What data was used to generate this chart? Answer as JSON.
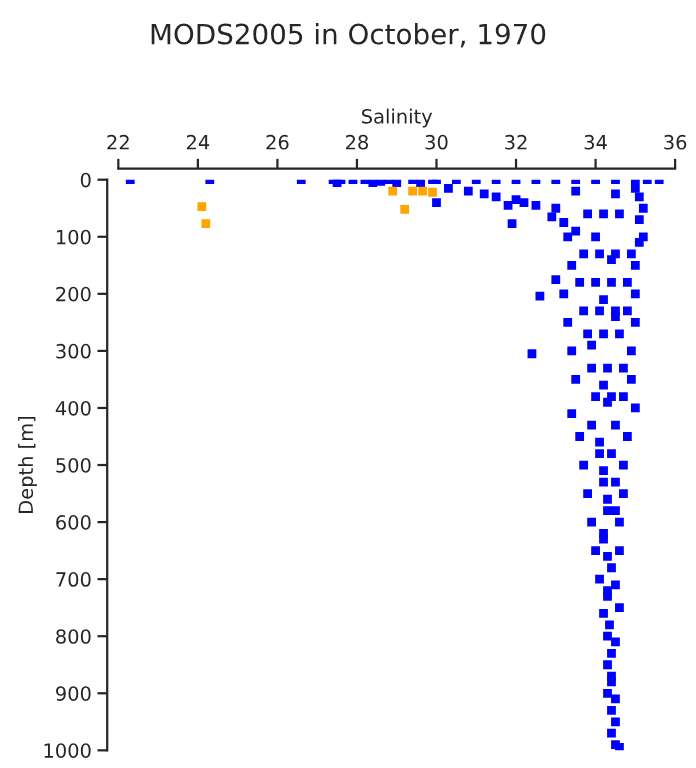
{
  "chart_data": {
    "type": "scatter",
    "title": "MODS2005 in October, 1970",
    "xlabel": "Salinity",
    "ylabel": "Depth [m]",
    "xlim": [
      22,
      36
    ],
    "xticks": [
      22,
      24,
      26,
      28,
      30,
      32,
      34,
      36
    ],
    "ylim": [
      1000,
      0
    ],
    "yticks": [
      0,
      100,
      200,
      300,
      400,
      500,
      600,
      700,
      800,
      900,
      1000
    ],
    "grid": false,
    "legend": false,
    "marker": "square",
    "series": [
      {
        "color": "#0000ff",
        "x": [
          22.3,
          24.3,
          26.6,
          27.4,
          27.5,
          27.6,
          27.9,
          28.2,
          28.4,
          28.6,
          28.8,
          29.0,
          29.4,
          29.6,
          29.9,
          30.0,
          30.5,
          31.0,
          31.5,
          32.0,
          32.5,
          33.0,
          33.5,
          34.0,
          34.5,
          35.0,
          35.3,
          35.6,
          30.0,
          30.3,
          30.8,
          31.2,
          31.5,
          32.0,
          32.2,
          31.8,
          32.5,
          33.0,
          33.5,
          34.5,
          35.0,
          35.2,
          35.1,
          32.9,
          33.2,
          33.5,
          31.9,
          35.1,
          35.2,
          33.3,
          35.1,
          34.0,
          33.4,
          33.0,
          35.0,
          34.4,
          32.6,
          33.2,
          35.0,
          34.2,
          33.3,
          35.0,
          34.5,
          32.4,
          33.4,
          34.9,
          33.9,
          33.5,
          34.9,
          34.2,
          33.4,
          35.0,
          34.3,
          33.6,
          34.8,
          34.1,
          33.7,
          34.7,
          34.2,
          33.8,
          34.7,
          34.3,
          33.9,
          34.6,
          34.2,
          34.0,
          34.6,
          34.3,
          34.1,
          34.5,
          34.3,
          34.2,
          34.6,
          34.35,
          34.3,
          34.5,
          34.3,
          34.4,
          34.3,
          34.5,
          34.5,
          34.5,
          34.6,
          33.8,
          34.2,
          34.6,
          33.7,
          34.1,
          34.5,
          34.9,
          33.6,
          34.0,
          34.4,
          34.8,
          33.7,
          34.1,
          34.5,
          34.8,
          33.8,
          34.2,
          34.6,
          33.9,
          34.3,
          34.7,
          34.0,
          34.4,
          34.7,
          33.9,
          34.5,
          34.1,
          34.4,
          34.2,
          34.5,
          34.3,
          34.5,
          34.2,
          34.4,
          34.3,
          34.4,
          34.4,
          34.4,
          34.4
        ],
        "values": [
          0,
          0,
          0,
          0,
          5,
          0,
          0,
          0,
          5,
          3,
          0,
          5,
          0,
          5,
          0,
          0,
          0,
          0,
          0,
          0,
          0,
          0,
          0,
          0,
          0,
          0,
          0,
          0,
          40,
          15,
          20,
          25,
          30,
          35,
          40,
          45,
          45,
          50,
          20,
          25,
          15,
          50,
          30,
          65,
          75,
          90,
          77,
          70,
          100,
          100,
          110,
          100,
          150,
          175,
          150,
          140,
          204,
          200,
          200,
          210,
          250,
          250,
          240,
          305,
          300,
          300,
          290,
          350,
          350,
          360,
          410,
          400,
          390,
          450,
          450,
          460,
          500,
          500,
          510,
          550,
          550,
          560,
          600,
          600,
          620,
          650,
          650,
          660,
          700,
          710,
          720,
          760,
          750,
          780,
          800,
          810,
          850,
          870,
          900,
          910,
          950,
          990,
          995,
          60,
          60,
          60,
          130,
          130,
          130,
          130,
          180,
          180,
          180,
          180,
          230,
          230,
          230,
          230,
          270,
          270,
          270,
          330,
          330,
          330,
          380,
          380,
          380,
          430,
          430,
          480,
          480,
          530,
          530,
          580,
          580,
          630,
          680,
          730,
          830,
          880,
          930,
          970
        ]
      },
      {
        "color": "#ffa500",
        "x": [
          24.1,
          24.2,
          28.9,
          29.2,
          29.4,
          29.65,
          29.9
        ],
        "values": [
          47,
          77,
          20,
          52,
          20,
          20,
          22
        ]
      }
    ]
  }
}
